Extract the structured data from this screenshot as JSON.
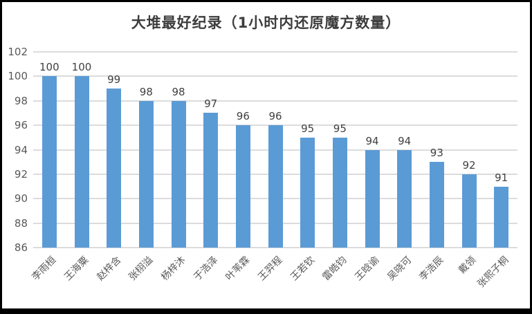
{
  "window": {
    "title": "大堆最好纪录（1小时内还原魔方数量）"
  },
  "chart_data": {
    "type": "bar",
    "title": "大堆最好纪录（1小时内还原魔方数量）",
    "categories": [
      "李雨桓",
      "王海粟",
      "赵梓含",
      "张栩溢",
      "杨梓沐",
      "于浩泽",
      "叶苇霖",
      "王羿程",
      "王若钦",
      "雷皓钧",
      "王晗谕",
      "吴晓可",
      "李浩辰",
      "戴领",
      "张熙子桐"
    ],
    "values": [
      100,
      100,
      99,
      98,
      98,
      97,
      96,
      96,
      95,
      95,
      94,
      94,
      93,
      92,
      91
    ],
    "xlabel": "",
    "ylabel": "",
    "ylim": [
      86,
      102
    ],
    "y_ticks": [
      86,
      88,
      90,
      92,
      94,
      96,
      98,
      100,
      102
    ],
    "grid": true,
    "legend": "none",
    "data_labels": true,
    "bar_color": "#5b9bd5",
    "gridline_color": "#dcdcdc",
    "axis_text_color": "#595959",
    "value_label_color": "#404040",
    "title_color": "#3d3d3d"
  }
}
